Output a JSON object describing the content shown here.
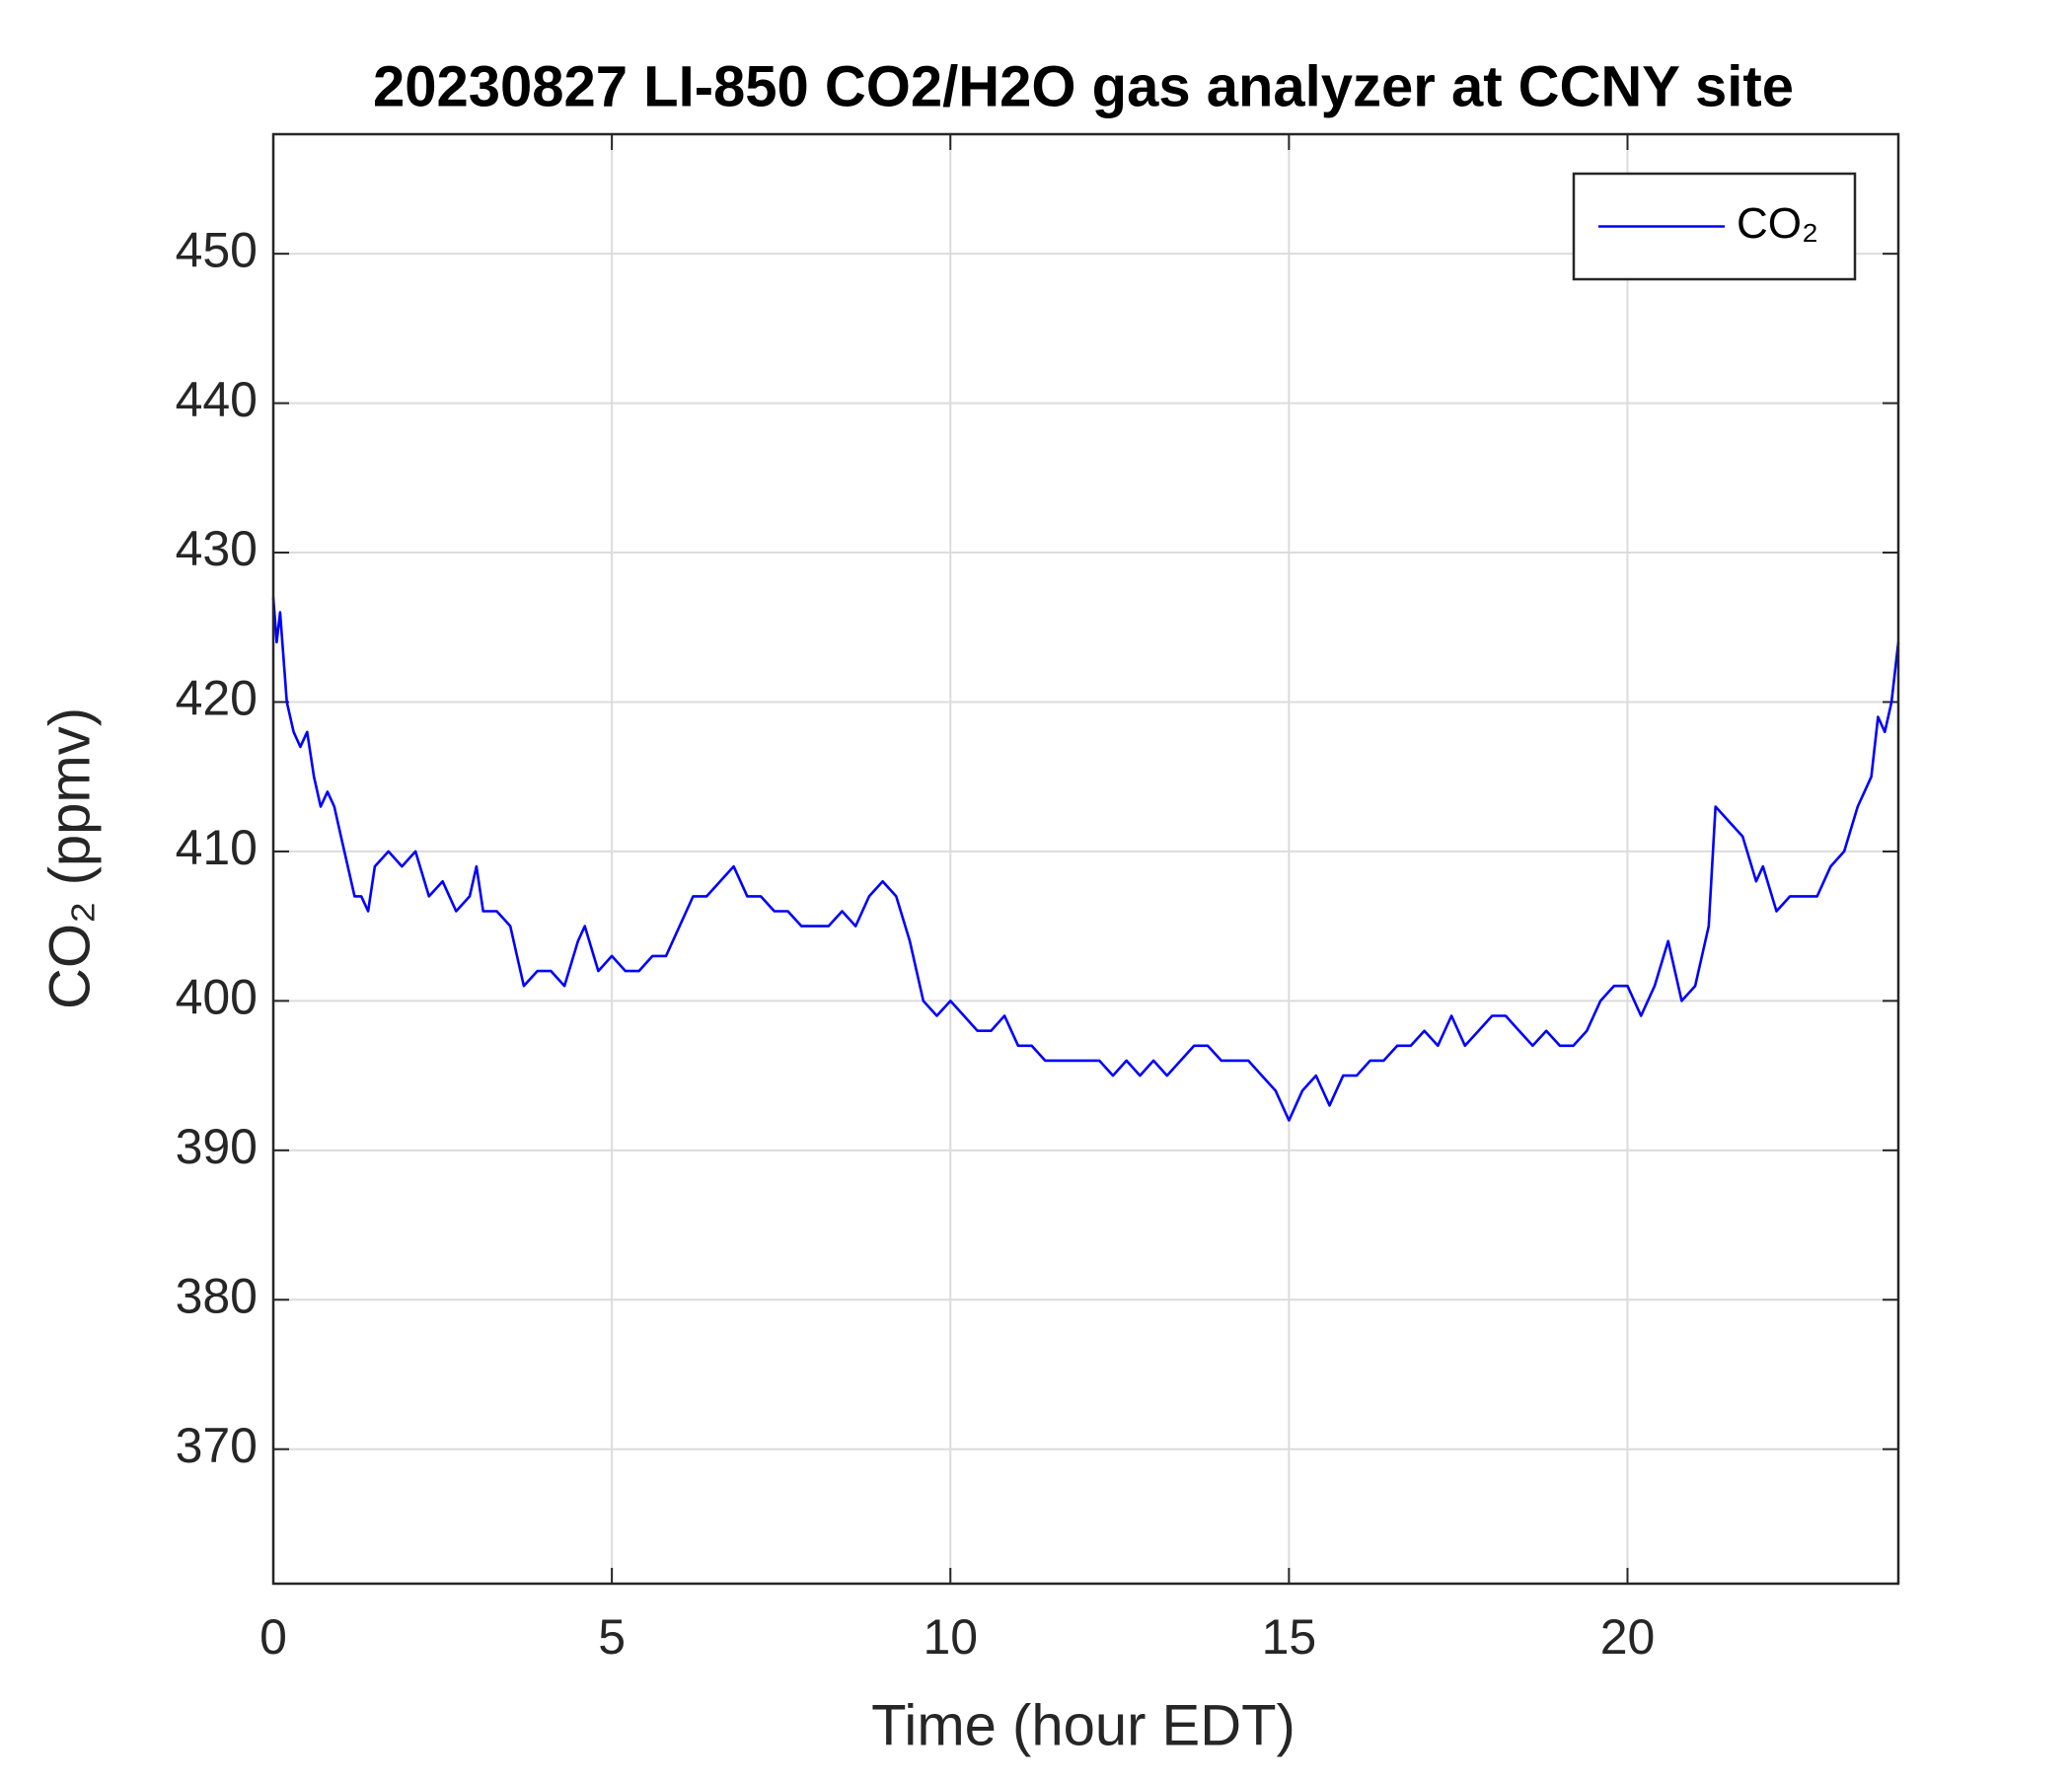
{
  "chart_data": {
    "type": "line",
    "title": "20230827 LI-850 CO2/H2O gas analyzer at CCNY site",
    "x_label": "Time (hour EDT)",
    "y_label": "CO₂ (ppmv)",
    "xlim": [
      0,
      24
    ],
    "ylim": [
      361,
      458
    ],
    "xticks": [
      0,
      5,
      10,
      15,
      20
    ],
    "yticks": [
      370,
      380,
      390,
      400,
      410,
      420,
      430,
      440,
      450
    ],
    "grid": true,
    "legend": "upper right",
    "x": [
      0,
      0.05,
      0.1,
      0.2,
      0.3,
      0.4,
      0.5,
      0.6,
      0.7,
      0.8,
      0.9,
      1.0,
      1.1,
      1.2,
      1.3,
      1.4,
      1.5,
      1.7,
      1.9,
      2.1,
      2.3,
      2.5,
      2.7,
      2.9,
      3.0,
      3.1,
      3.3,
      3.5,
      3.6,
      3.7,
      3.9,
      4.1,
      4.3,
      4.5,
      4.6,
      4.8,
      5.0,
      5.2,
      5.4,
      5.6,
      5.8,
      6.0,
      6.2,
      6.4,
      6.6,
      6.8,
      7.0,
      7.2,
      7.4,
      7.6,
      7.8,
      8.0,
      8.2,
      8.4,
      8.6,
      8.8,
      9.0,
      9.2,
      9.4,
      9.6,
      9.8,
      10.0,
      10.2,
      10.4,
      10.6,
      10.8,
      11.0,
      11.2,
      11.4,
      11.6,
      11.8,
      12.0,
      12.2,
      12.4,
      12.6,
      12.8,
      13.0,
      13.2,
      13.4,
      13.6,
      13.8,
      14.0,
      14.2,
      14.4,
      14.6,
      14.8,
      15.0,
      15.2,
      15.4,
      15.6,
      15.8,
      16.0,
      16.2,
      16.4,
      16.6,
      16.8,
      17.0,
      17.2,
      17.4,
      17.6,
      17.8,
      18.0,
      18.2,
      18.4,
      18.6,
      18.8,
      19.0,
      19.2,
      19.4,
      19.6,
      19.8,
      20.0,
      20.2,
      20.4,
      20.6,
      20.8,
      21.0,
      21.2,
      21.3,
      21.5,
      21.7,
      21.9,
      22.0,
      22.2,
      22.4,
      22.6,
      22.8,
      23.0,
      23.2,
      23.4,
      23.6,
      23.7,
      23.8,
      23.9,
      24.0
    ],
    "series": [
      {
        "name": "CO₂",
        "color": "#0000ff",
        "values": [
          427,
          424,
          426,
          420,
          418,
          417,
          418,
          415,
          413,
          414,
          413,
          411,
          409,
          407,
          407,
          406,
          409,
          410,
          409,
          410,
          407,
          408,
          406,
          407,
          409,
          406,
          406,
          405,
          403,
          401,
          402,
          402,
          401,
          404,
          405,
          402,
          403,
          402,
          402,
          403,
          403,
          405,
          407,
          407,
          408,
          409,
          407,
          407,
          406,
          406,
          405,
          405,
          405,
          406,
          405,
          407,
          408,
          407,
          404,
          400,
          399,
          400,
          399,
          398,
          398,
          399,
          397,
          397,
          396,
          396,
          396,
          396,
          396,
          395,
          396,
          395,
          396,
          395,
          396,
          397,
          397,
          396,
          396,
          396,
          395,
          394,
          392,
          394,
          395,
          393,
          395,
          395,
          396,
          396,
          397,
          397,
          398,
          397,
          399,
          397,
          398,
          399,
          399,
          398,
          397,
          398,
          397,
          397,
          398,
          400,
          401,
          401,
          399,
          401,
          404,
          400,
          401,
          405,
          413,
          412,
          411,
          408,
          409,
          406,
          407,
          407,
          407,
          409,
          410,
          413,
          415,
          419,
          418,
          420,
          424
        ]
      }
    ]
  }
}
